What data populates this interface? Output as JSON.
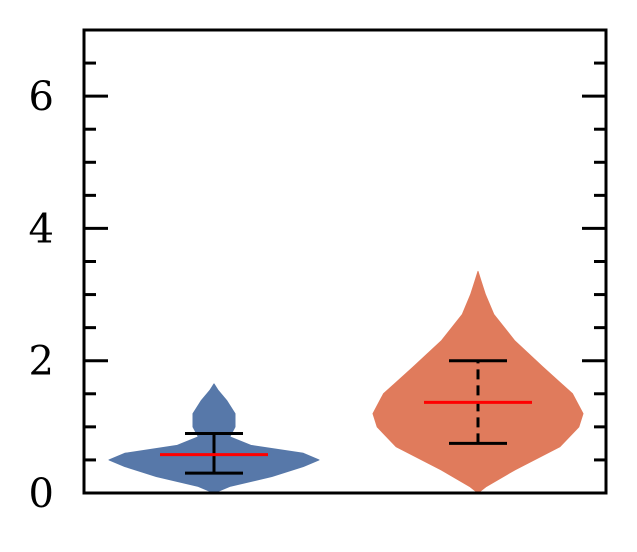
{
  "chart_data": {
    "type": "violin",
    "title": "",
    "xlabel": "",
    "ylabel": "",
    "ylim": [
      0,
      7
    ],
    "yticks": [
      0,
      2,
      4,
      6
    ],
    "ytick_labels": [
      "0",
      "2",
      "4",
      "6"
    ],
    "minor_ytick_step": 0.5,
    "grid": false,
    "xticks_shown": false,
    "series": [
      {
        "color": "#5778a9",
        "min": 0.3,
        "max": 0.9,
        "median": 0.58,
        "whisker_style": "solid",
        "median_color": "#ff0000",
        "profile": [
          {
            "y": 0.0,
            "w": 0.0
          },
          {
            "y": 0.1,
            "w": 0.15
          },
          {
            "y": 0.25,
            "w": 0.55
          },
          {
            "y": 0.4,
            "w": 0.85
          },
          {
            "y": 0.5,
            "w": 1.0
          },
          {
            "y": 0.6,
            "w": 0.85
          },
          {
            "y": 0.72,
            "w": 0.35
          },
          {
            "y": 0.85,
            "w": 0.15
          },
          {
            "y": 1.0,
            "w": 0.2
          },
          {
            "y": 1.2,
            "w": 0.2
          },
          {
            "y": 1.4,
            "w": 0.12
          },
          {
            "y": 1.55,
            "w": 0.04
          },
          {
            "y": 1.65,
            "w": 0.0
          }
        ]
      },
      {
        "color": "#e07b5c",
        "min": 0.75,
        "max": 2.0,
        "median": 1.37,
        "whisker_style": "dashed",
        "median_color": "#ff0000",
        "profile": [
          {
            "y": 0.0,
            "w": 0.0
          },
          {
            "y": 0.1,
            "w": 0.08
          },
          {
            "y": 0.35,
            "w": 0.35
          },
          {
            "y": 0.7,
            "w": 0.78
          },
          {
            "y": 1.0,
            "w": 0.96
          },
          {
            "y": 1.2,
            "w": 1.0
          },
          {
            "y": 1.5,
            "w": 0.9
          },
          {
            "y": 1.9,
            "w": 0.62
          },
          {
            "y": 2.3,
            "w": 0.35
          },
          {
            "y": 2.7,
            "w": 0.15
          },
          {
            "y": 3.0,
            "w": 0.07
          },
          {
            "y": 3.2,
            "w": 0.03
          },
          {
            "y": 3.35,
            "w": 0.0
          }
        ]
      }
    ]
  }
}
